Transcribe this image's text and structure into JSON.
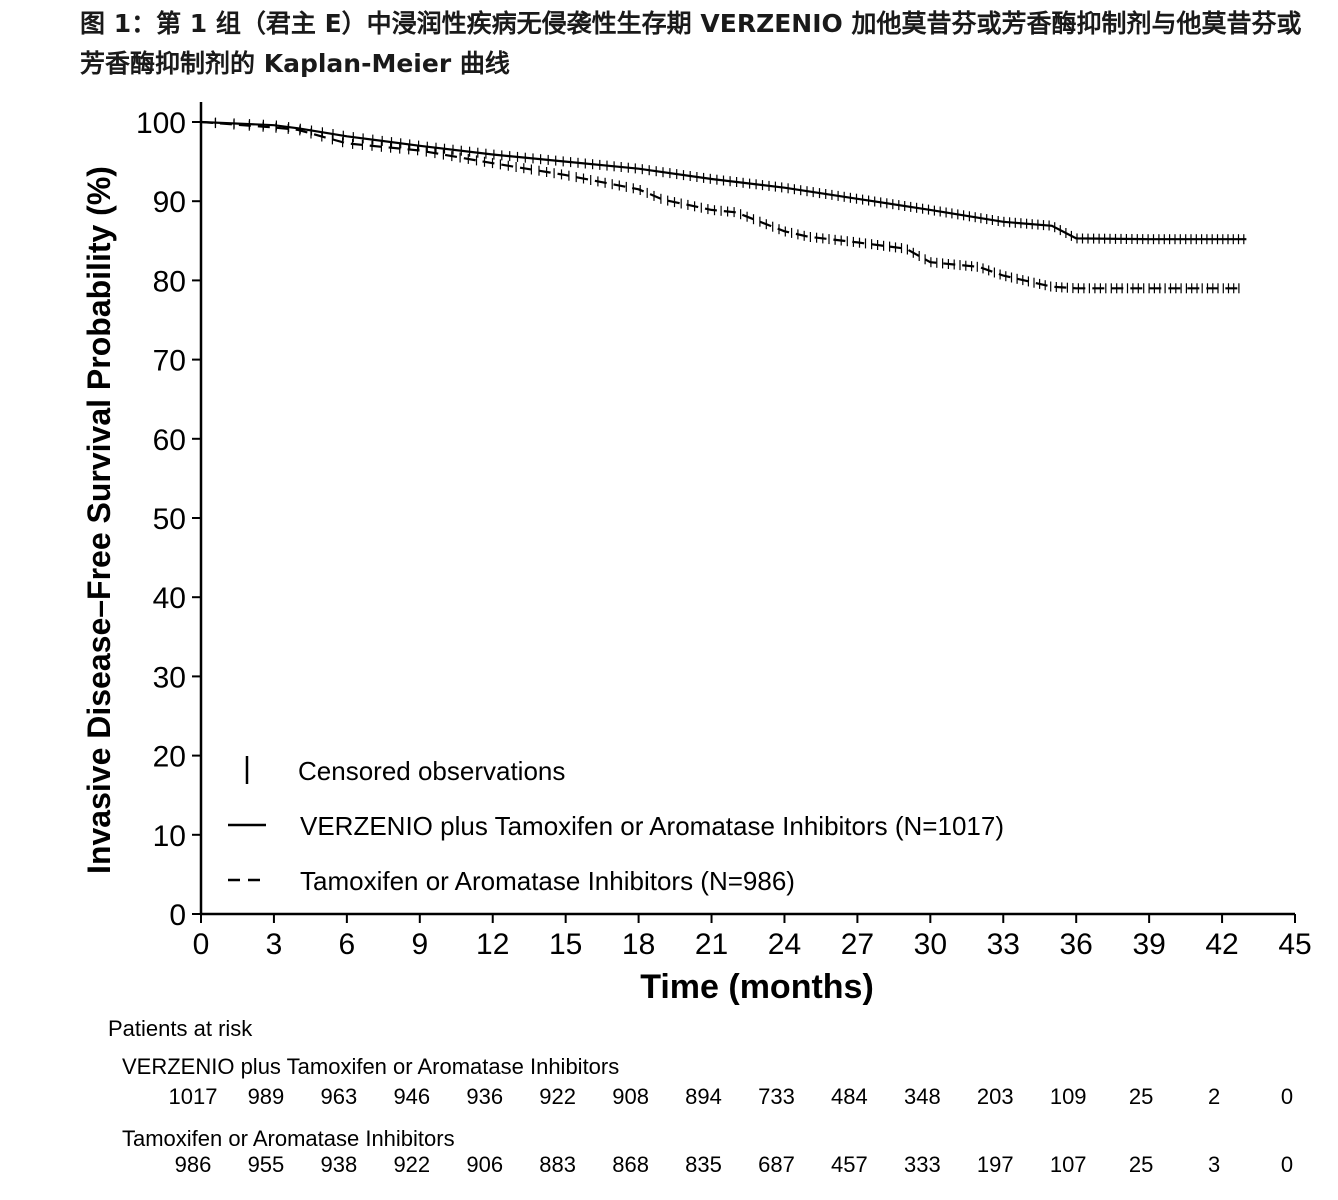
{
  "title": "图 1：第 1 组（君主 E）中浸润性疾病无侵袭性生存期 VERZENIO 加他莫昔芬或芳香酶抑制剂与他莫昔芬或芳香酶抑制剂的 Kaplan-Meier 曲线",
  "chart_data": {
    "type": "line",
    "xlabel": "Time (months)",
    "ylabel": "Invasive Disease–Free Survival Probability (%)",
    "xlim": [
      0,
      45
    ],
    "ylim": [
      0,
      100
    ],
    "xticks": [
      "0",
      "3",
      "6",
      "9",
      "12",
      "15",
      "18",
      "21",
      "24",
      "27",
      "30",
      "33",
      "36",
      "39",
      "42",
      "45"
    ],
    "yticks": [
      "0",
      "10",
      "20",
      "30",
      "40",
      "50",
      "60",
      "70",
      "80",
      "90",
      "100"
    ],
    "grid": false,
    "legend_position": "bottom-left",
    "legend": {
      "censored": "Censored observations",
      "series_labels": [
        "VERZENIO plus Tamoxifen or Aromatase Inhibitors (N=1017)",
        "Tamoxifen or Aromatase Inhibitors (N=986)"
      ]
    },
    "series": [
      {
        "name": "VERZENIO plus Tamoxifen or Aromatase Inhibitors (N=1017)",
        "style": "solid",
        "x": [
          0,
          3,
          4,
          6,
          9,
          12,
          15,
          18,
          21,
          24,
          27,
          30,
          33,
          35,
          36,
          39,
          43
        ],
        "y": [
          100,
          99.6,
          99.2,
          98.2,
          97.0,
          95.9,
          95.0,
          94.1,
          92.8,
          91.7,
          90.3,
          88.9,
          87.4,
          86.9,
          85.3,
          85.2,
          85.2
        ]
      },
      {
        "name": "Tamoxifen or Aromatase Inhibitors (N=986)",
        "style": "dashed",
        "x": [
          0,
          3,
          4,
          6,
          9,
          12,
          15,
          18,
          19,
          21,
          22,
          24,
          25,
          27,
          29,
          30,
          32,
          33,
          35,
          36,
          39,
          42.8
        ],
        "y": [
          100,
          99.3,
          99.0,
          97.3,
          96.4,
          94.8,
          93.3,
          91.5,
          90.2,
          88.9,
          88.6,
          86.2,
          85.5,
          84.8,
          84.0,
          82.3,
          81.7,
          80.6,
          79.2,
          79.0,
          79.0,
          79.0
        ]
      }
    ],
    "patients_at_risk": {
      "title": "Patients at risk",
      "groups": [
        {
          "label": "VERZENIO plus Tamoxifen or Aromatase Inhibitors",
          "values": [
            "1017",
            "989",
            "963",
            "946",
            "936",
            "922",
            "908",
            "894",
            "733",
            "484",
            "348",
            "203",
            "109",
            "25",
            "2",
            "0"
          ]
        },
        {
          "label": "Tamoxifen or Aromatase Inhibitors",
          "values": [
            "986",
            "955",
            "938",
            "922",
            "906",
            "883",
            "868",
            "835",
            "687",
            "457",
            "333",
            "197",
            "107",
            "25",
            "3",
            "0"
          ]
        }
      ]
    }
  }
}
